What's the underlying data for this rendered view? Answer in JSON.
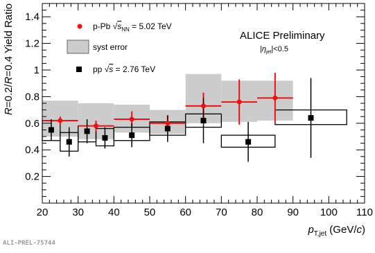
{
  "chart_data": {
    "type": "scatter",
    "xlabel": {
      "main": "p",
      "sub": "T,jet",
      "unit_open": " (GeV/",
      "unit_var": "c",
      "unit_close": ")"
    },
    "ylabel": {
      "a": "R",
      "b": "=0.2/",
      "c": "R",
      "d": "=0.4 Yield Ratio"
    },
    "xlim": [
      20,
      110
    ],
    "ylim": [
      0,
      1.5
    ],
    "x_ticks": [
      20,
      30,
      40,
      50,
      60,
      70,
      80,
      90,
      100,
      110
    ],
    "y_ticks": [
      0.2,
      0.4,
      0.6,
      0.8,
      1,
      1.2,
      1.4
    ],
    "x_tick_labels": [
      "20",
      "30",
      "40",
      "50",
      "60",
      "70",
      "80",
      "90",
      "100",
      "110"
    ],
    "y_tick_labels": [
      "0.2",
      "0.4",
      "0.6",
      "0.8",
      "1",
      "1.2",
      "1.4"
    ],
    "annotations": {
      "title": "ALICE Preliminary",
      "eta_open": "|",
      "eta_sym": "η",
      "eta_sub": "jet",
      "eta_close": "|<0.5"
    },
    "legend": {
      "ppb": {
        "pre": "p-Pb  ",
        "sqrt": "√",
        "s": "s",
        "sub": "NN",
        "post": " = 5.02 TeV"
      },
      "syst": "syst error",
      "pp": {
        "pre": "pp  ",
        "sqrt": "√",
        "s": "s",
        "post": " = 2.76 TeV"
      }
    },
    "series": [
      {
        "name": "p-Pb √sNN = 5.02 TeV",
        "color": "#ee1111",
        "marker": "circle",
        "points": [
          {
            "x": 25,
            "y": 0.62,
            "xerr": 5,
            "yerr": 0.03,
            "syst_lo": 0.5,
            "syst_hi": 0.77
          },
          {
            "x": 35,
            "y": 0.58,
            "xerr": 5,
            "yerr": 0.04,
            "syst_lo": 0.48,
            "syst_hi": 0.75
          },
          {
            "x": 45,
            "y": 0.63,
            "xerr": 5,
            "yerr": 0.06,
            "syst_lo": 0.53,
            "syst_hi": 0.74
          },
          {
            "x": 55,
            "y": 0.6,
            "xerr": 5,
            "yerr": 0.06,
            "syst_lo": 0.52,
            "syst_hi": 0.7
          },
          {
            "x": 65,
            "y": 0.73,
            "xerr": 5,
            "yerr": 0.1,
            "syst_lo": 0.6,
            "syst_hi": 0.97
          },
          {
            "x": 75,
            "y": 0.76,
            "xerr": 5,
            "yerr": 0.17,
            "syst_lo": 0.61,
            "syst_hi": 0.92
          },
          {
            "x": 85,
            "y": 0.79,
            "xerr": 5,
            "yerr": 0.19,
            "syst_lo": 0.62,
            "syst_hi": 0.92
          }
        ]
      },
      {
        "name": "pp √s = 2.76 TeV",
        "color": "#000000",
        "marker": "square",
        "points": [
          {
            "x": 22.5,
            "y": 0.55,
            "xerr": 2.5,
            "yerr": 0.08,
            "syst_lo": 0.47,
            "syst_hi": 0.62
          },
          {
            "x": 27.5,
            "y": 0.46,
            "xerr": 2.5,
            "yerr": 0.11,
            "syst_lo": 0.39,
            "syst_hi": 0.53
          },
          {
            "x": 32.5,
            "y": 0.54,
            "xerr": 2.5,
            "yerr": 0.09,
            "syst_lo": 0.46,
            "syst_hi": 0.58
          },
          {
            "x": 37.5,
            "y": 0.49,
            "xerr": 2.5,
            "yerr": 0.08,
            "syst_lo": 0.43,
            "syst_hi": 0.56
          },
          {
            "x": 45,
            "y": 0.51,
            "xerr": 5,
            "yerr": 0.09,
            "syst_lo": 0.47,
            "syst_hi": 0.57
          },
          {
            "x": 55,
            "y": 0.56,
            "xerr": 5,
            "yerr": 0.1,
            "syst_lo": 0.51,
            "syst_hi": 0.61
          },
          {
            "x": 65,
            "y": 0.62,
            "xerr": 5,
            "yerr": 0.17,
            "syst_lo": 0.57,
            "syst_hi": 0.67
          },
          {
            "x": 77.5,
            "y": 0.46,
            "xerr": 7.5,
            "yerr": 0.15,
            "syst_lo": 0.42,
            "syst_hi": 0.51
          },
          {
            "x": 95,
            "y": 0.64,
            "xerr": 10,
            "yerr": 0.3,
            "syst_lo": 0.59,
            "syst_hi": 0.7
          }
        ]
      }
    ]
  },
  "footer": "ALI-PREL-75744"
}
